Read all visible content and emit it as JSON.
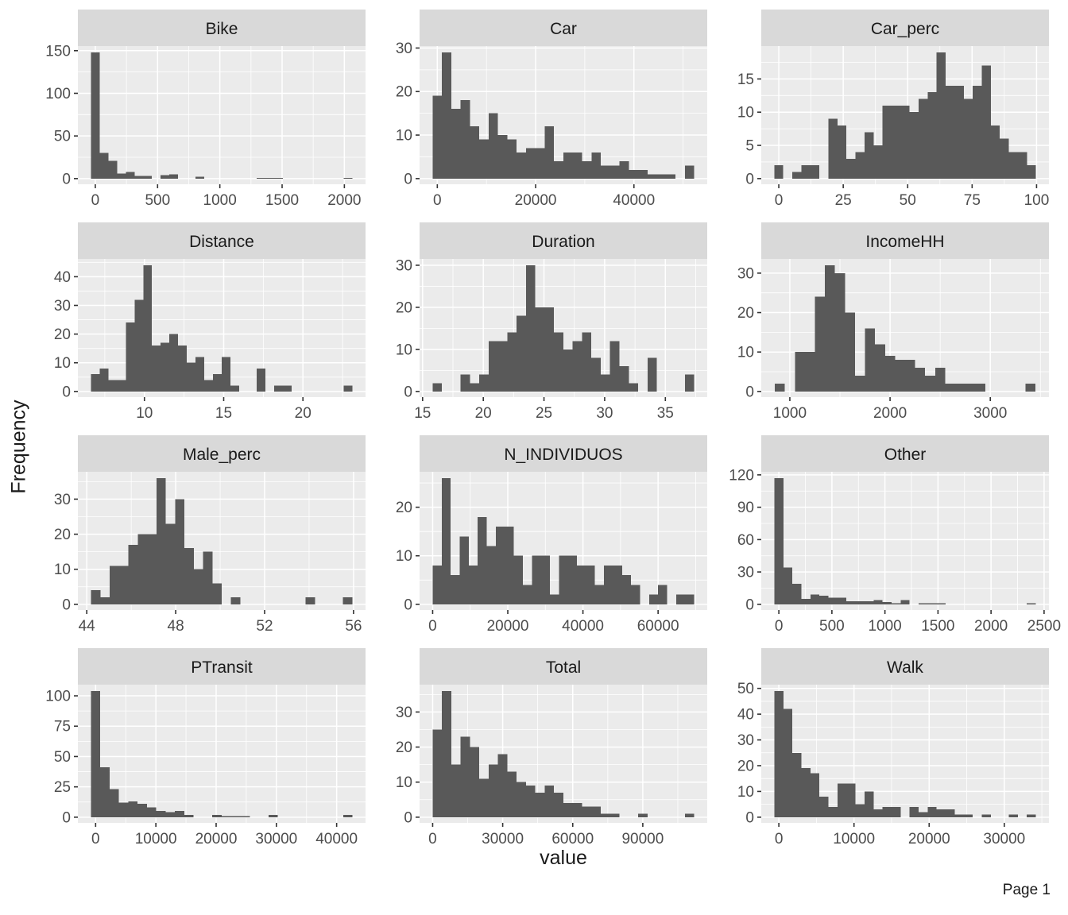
{
  "figure": {
    "ylabel": "Frequency",
    "xlabel": "value",
    "page_label": "Page 1"
  },
  "style": {
    "bar_color": "#595959",
    "panel_bg": "#EBEBEB",
    "strip_bg": "#D9D9D9",
    "grid_color": "#FFFFFF",
    "tick_mark_color": "#333333",
    "tick_label_color": "#4D4D4D",
    "title_color": "#1A1A1A"
  },
  "chart_data": [
    {
      "type": "bar",
      "title": "Bike",
      "xlabel": "value",
      "ylabel": "Frequency",
      "x_ticks": [
        0,
        500,
        1000,
        1500,
        2000
      ],
      "y_ticks": [
        0,
        50,
        100,
        150
      ],
      "x_domain": [
        -140,
        2170
      ],
      "bin_start": 0,
      "bin_width": 70,
      "counts": [
        148,
        30,
        21,
        6,
        8,
        3,
        3,
        0,
        4,
        5,
        0,
        0,
        2,
        0,
        0,
        0,
        0,
        0,
        0,
        1,
        1,
        1,
        0,
        0,
        0,
        0,
        0,
        0,
        0,
        1
      ]
    },
    {
      "type": "bar",
      "title": "Car",
      "xlabel": "value",
      "ylabel": "Frequency",
      "x_ticks": [
        0,
        20000,
        40000
      ],
      "y_ticks": [
        0,
        10,
        20,
        30
      ],
      "x_domain": [
        -3610,
        54910
      ],
      "bin_start": 0,
      "bin_width": 1900,
      "counts": [
        19,
        29,
        16,
        18,
        12,
        9,
        15,
        10,
        9,
        6,
        7,
        7,
        12,
        4,
        6,
        6,
        4,
        6,
        3,
        3,
        4,
        2,
        2,
        1,
        1,
        1,
        0,
        3
      ]
    },
    {
      "type": "bar",
      "title": "Car_perc",
      "xlabel": "value",
      "ylabel": "Frequency",
      "x_ticks": [
        0,
        25,
        50,
        75,
        100
      ],
      "y_ticks": [
        0,
        5,
        10,
        15
      ],
      "x_domain": [
        -6.8,
        104.8
      ],
      "bin_start": 0,
      "bin_width": 3.5,
      "counts": [
        2,
        0,
        1,
        2,
        2,
        0,
        9,
        8,
        3,
        4,
        7,
        5,
        11,
        11,
        11,
        10,
        12,
        13,
        19,
        14,
        14,
        12,
        14,
        17,
        8,
        6,
        4,
        4,
        2
      ]
    },
    {
      "type": "bar",
      "title": "Distance",
      "xlabel": "value",
      "ylabel": "Frequency",
      "x_ticks": [
        10,
        15,
        20
      ],
      "y_ticks": [
        0,
        10,
        20,
        30,
        40
      ],
      "x_domain": [
        5.8,
        23.95
      ],
      "bin_start": 6.9,
      "bin_width": 0.55,
      "counts": [
        6,
        8,
        4,
        4,
        24,
        32,
        44,
        16,
        17,
        20,
        16,
        10,
        12,
        4,
        6,
        12,
        2,
        0,
        0,
        8,
        0,
        2,
        2,
        0,
        0,
        0,
        0,
        0,
        0,
        2
      ]
    },
    {
      "type": "bar",
      "title": "Duration",
      "xlabel": "value",
      "ylabel": "Frequency",
      "x_ticks": [
        15,
        20,
        25,
        30,
        35
      ],
      "y_ticks": [
        0,
        10,
        20,
        30
      ],
      "x_domain": [
        14.75,
        38.45
      ],
      "bin_start": 16.2,
      "bin_width": 0.77,
      "counts": [
        2,
        0,
        0,
        4,
        2,
        4,
        12,
        12,
        14,
        18,
        30,
        20,
        20,
        14,
        10,
        12,
        14,
        8,
        4,
        12,
        6,
        2,
        0,
        8,
        0,
        0,
        0,
        4
      ]
    },
    {
      "type": "bar",
      "title": "IncomeHH",
      "xlabel": "value",
      "ylabel": "Frequency",
      "x_ticks": [
        1000,
        2000,
        3000
      ],
      "y_ticks": [
        0,
        10,
        20,
        30
      ],
      "x_domain": [
        715,
        3585
      ],
      "bin_start": 900,
      "bin_width": 100,
      "counts": [
        2,
        0,
        10,
        10,
        24,
        32,
        30,
        20,
        4,
        16,
        12,
        9,
        8,
        8,
        6,
        4,
        6,
        2,
        2,
        2,
        2,
        0,
        0,
        0,
        0,
        2
      ]
    },
    {
      "type": "bar",
      "title": "Male_perc",
      "xlabel": "value",
      "ylabel": "Frequency",
      "x_ticks": [
        44,
        48,
        52,
        56
      ],
      "y_ticks": [
        0,
        10,
        20,
        30
      ],
      "x_domain": [
        43.6,
        56.54
      ],
      "bin_start": 44.4,
      "bin_width": 0.42,
      "counts": [
        4,
        2,
        11,
        11,
        17,
        20,
        20,
        36,
        23,
        30,
        16,
        10,
        15,
        6,
        0,
        2,
        0,
        0,
        0,
        0,
        0,
        0,
        0,
        2,
        0,
        0,
        0,
        2
      ]
    },
    {
      "type": "bar",
      "title": "N_INDIVIDUOS",
      "xlabel": "value",
      "ylabel": "Frequency",
      "x_ticks": [
        0,
        20000,
        40000,
        60000
      ],
      "y_ticks": [
        0,
        10,
        20
      ],
      "x_domain": [
        -3480,
        73080
      ],
      "bin_start": 1200,
      "bin_width": 2400,
      "counts": [
        8,
        26,
        6,
        14,
        8,
        18,
        12,
        16,
        16,
        10,
        4,
        10,
        10,
        2,
        10,
        10,
        8,
        8,
        4,
        8,
        8,
        6,
        4,
        0,
        2,
        4,
        0,
        2,
        2
      ]
    },
    {
      "type": "bar",
      "title": "Other",
      "xlabel": "value",
      "ylabel": "Frequency",
      "x_ticks": [
        0,
        500,
        1000,
        1500,
        2000,
        2500
      ],
      "y_ticks": [
        0,
        30,
        60,
        90,
        120
      ],
      "x_domain": [
        -165.75,
        2545.75
      ],
      "bin_start": 0,
      "bin_width": 85,
      "counts": [
        117,
        34,
        19,
        5,
        9,
        8,
        6,
        6,
        3,
        3,
        3,
        4,
        2,
        1,
        4,
        0,
        1,
        1,
        1,
        0,
        0,
        0,
        0,
        0,
        0,
        0,
        0,
        0,
        1
      ]
    },
    {
      "type": "bar",
      "title": "PTransit",
      "xlabel": "value",
      "ylabel": "Frequency",
      "x_ticks": [
        0,
        10000,
        20000,
        30000,
        40000
      ],
      "y_ticks": [
        0,
        25,
        50,
        75,
        100
      ],
      "x_domain": [
        -2945,
        44795
      ],
      "bin_start": 0,
      "bin_width": 1550,
      "counts": [
        104,
        41,
        23,
        12,
        13,
        11,
        8,
        5,
        4,
        5,
        2,
        0,
        0,
        2,
        1,
        1,
        1,
        0,
        0,
        2,
        0,
        0,
        0,
        0,
        0,
        0,
        0,
        2
      ]
    },
    {
      "type": "bar",
      "title": "Total",
      "xlabel": "value",
      "ylabel": "Frequency",
      "x_ticks": [
        0,
        30000,
        60000,
        90000
      ],
      "y_ticks": [
        0,
        10,
        20,
        30
      ],
      "x_domain": [
        -5600,
        117600
      ],
      "bin_start": 2000,
      "bin_width": 4000,
      "counts": [
        25,
        36,
        15,
        23,
        20,
        11,
        15,
        18,
        13,
        10,
        9,
        7,
        9,
        7,
        4,
        4,
        3,
        3,
        1,
        1,
        0,
        0,
        1,
        0,
        0,
        0,
        0,
        1
      ]
    },
    {
      "type": "bar",
      "title": "Walk",
      "xlabel": "value",
      "ylabel": "Frequency",
      "x_ticks": [
        0,
        10000,
        20000,
        30000
      ],
      "y_ticks": [
        0,
        10,
        20,
        30,
        40,
        50
      ],
      "x_domain": [
        -2340,
        35940
      ],
      "bin_start": 0,
      "bin_width": 1200,
      "counts": [
        49,
        42,
        25,
        19,
        17,
        8,
        4,
        13,
        13,
        5,
        10,
        3,
        4,
        4,
        0,
        4,
        2,
        4,
        3,
        3,
        1,
        1,
        0,
        1,
        0,
        0,
        1,
        0,
        1
      ]
    }
  ]
}
